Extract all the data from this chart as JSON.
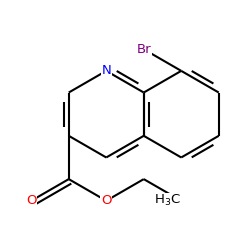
{
  "background_color": "#ffffff",
  "atom_colors": {
    "N": "#0000ff",
    "O": "#ff0000",
    "Br": "#800080",
    "C": "#000000"
  },
  "bond_color": "#000000",
  "bond_width": 1.5,
  "font_size": 9.5
}
